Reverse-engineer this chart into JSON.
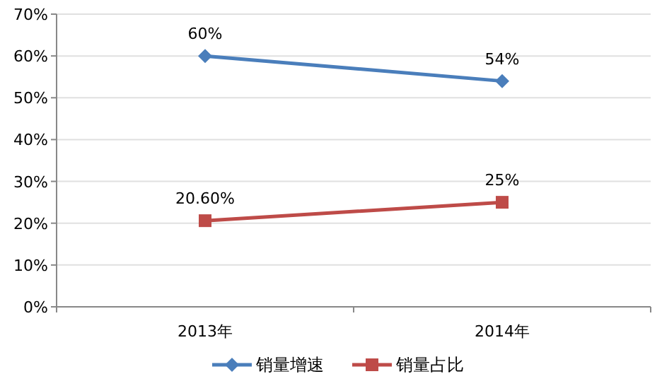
{
  "chart_data": {
    "type": "line",
    "categories": [
      "2013年",
      "2014年"
    ],
    "series": [
      {
        "name": "销量增速",
        "color": "#4a7ebb",
        "values": [
          60,
          54
        ],
        "value_labels": [
          "60%",
          "54%"
        ],
        "marker": "diamond"
      },
      {
        "name": "销量占比",
        "color": "#be4b48",
        "values": [
          20.6,
          25
        ],
        "value_labels": [
          "20.60%",
          "25%"
        ],
        "marker": "square"
      }
    ],
    "ylim": [
      0,
      70
    ],
    "yticks": [
      {
        "value": 0,
        "label": "0%"
      },
      {
        "value": 10,
        "label": "10%"
      },
      {
        "value": 20,
        "label": "20%"
      },
      {
        "value": 30,
        "label": "30%"
      },
      {
        "value": 40,
        "label": "40%"
      },
      {
        "value": 50,
        "label": "50%"
      },
      {
        "value": 60,
        "label": "60%"
      },
      {
        "value": 70,
        "label": "70%"
      }
    ],
    "grid": "y",
    "legend": "bottom",
    "line_style": "solid"
  }
}
